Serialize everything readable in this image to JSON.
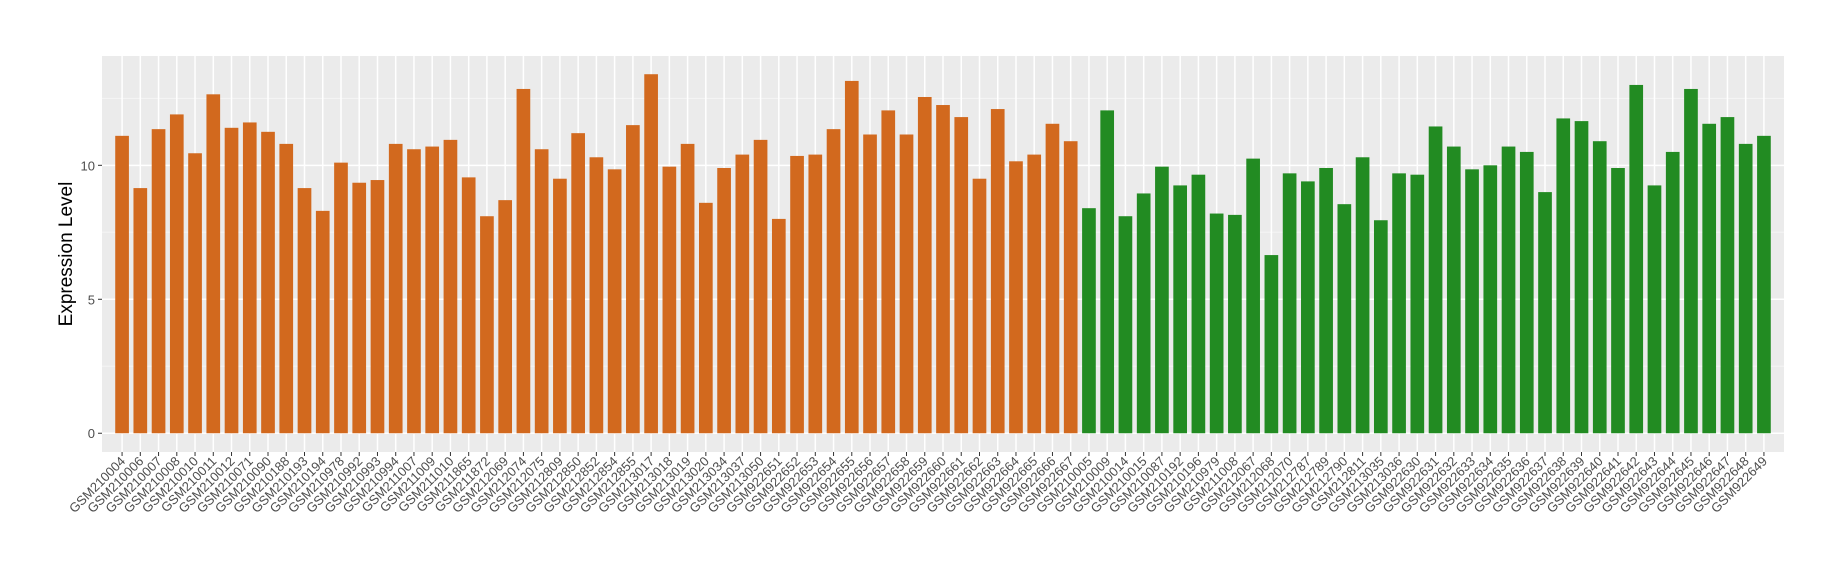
{
  "chart_data": {
    "type": "bar",
    "y_label": "Expression Level",
    "categories": [
      "GSM210004",
      "GSM210006",
      "GSM210007",
      "GSM210008",
      "GSM210010",
      "GSM210011",
      "GSM210012",
      "GSM210071",
      "GSM210090",
      "GSM210188",
      "GSM210193",
      "GSM210194",
      "GSM210978",
      "GSM210992",
      "GSM210993",
      "GSM210994",
      "GSM211007",
      "GSM211009",
      "GSM211010",
      "GSM211865",
      "GSM211872",
      "GSM212069",
      "GSM212074",
      "GSM212075",
      "GSM212809",
      "GSM212850",
      "GSM212852",
      "GSM212854",
      "GSM212855",
      "GSM213017",
      "GSM213018",
      "GSM213019",
      "GSM213020",
      "GSM213034",
      "GSM213037",
      "GSM213050",
      "GSM922651",
      "GSM922652",
      "GSM922653",
      "GSM922654",
      "GSM922655",
      "GSM922656",
      "GSM922657",
      "GSM922658",
      "GSM922659",
      "GSM922660",
      "GSM922661",
      "GSM922662",
      "GSM922663",
      "GSM922664",
      "GSM922665",
      "GSM922666",
      "GSM922667",
      "GSM210005",
      "GSM210009",
      "GSM210014",
      "GSM210015",
      "GSM210087",
      "GSM210192",
      "GSM210196",
      "GSM210979",
      "GSM211008",
      "GSM212067",
      "GSM212068",
      "GSM212070",
      "GSM212787",
      "GSM212789",
      "GSM212790",
      "GSM212811",
      "GSM213035",
      "GSM213036",
      "GSM922630",
      "GSM922631",
      "GSM922632",
      "GSM922633",
      "GSM922634",
      "GSM922635",
      "GSM922636",
      "GSM922637",
      "GSM922638",
      "GSM922639",
      "GSM922640",
      "GSM922641",
      "GSM922642",
      "GSM922643",
      "GSM922644",
      "GSM922645",
      "GSM922646",
      "GSM922647",
      "GSM922648",
      "GSM922649"
    ],
    "values": [
      11.1,
      9.15,
      11.35,
      11.9,
      10.45,
      12.65,
      11.4,
      11.6,
      11.25,
      10.8,
      9.15,
      8.3,
      10.1,
      9.35,
      9.45,
      10.8,
      10.6,
      10.7,
      10.95,
      9.55,
      8.1,
      8.7,
      12.85,
      10.6,
      9.5,
      11.2,
      10.3,
      9.85,
      11.5,
      13.4,
      9.95,
      10.8,
      8.6,
      9.9,
      10.4,
      10.95,
      8.0,
      10.35,
      10.4,
      11.35,
      13.15,
      11.15,
      12.05,
      11.15,
      12.55,
      12.25,
      11.8,
      9.5,
      12.1,
      10.15,
      10.4,
      11.55,
      10.9,
      8.4,
      12.05,
      8.1,
      8.95,
      9.95,
      9.25,
      9.65,
      8.2,
      8.15,
      10.25,
      6.65,
      9.7,
      9.4,
      9.9,
      8.55,
      10.3,
      7.95,
      9.7,
      9.65,
      11.45,
      10.7,
      9.85,
      10.0,
      10.7,
      10.5,
      9.0,
      11.75,
      11.65,
      10.9,
      9.9,
      13.0,
      9.25,
      10.5,
      12.85,
      11.55,
      11.8,
      10.8,
      11.1
    ],
    "colors": [
      "#d2691e",
      "#d2691e",
      "#d2691e",
      "#d2691e",
      "#d2691e",
      "#d2691e",
      "#d2691e",
      "#d2691e",
      "#d2691e",
      "#d2691e",
      "#d2691e",
      "#d2691e",
      "#d2691e",
      "#d2691e",
      "#d2691e",
      "#d2691e",
      "#d2691e",
      "#d2691e",
      "#d2691e",
      "#d2691e",
      "#d2691e",
      "#d2691e",
      "#d2691e",
      "#d2691e",
      "#d2691e",
      "#d2691e",
      "#d2691e",
      "#d2691e",
      "#d2691e",
      "#d2691e",
      "#d2691e",
      "#d2691e",
      "#d2691e",
      "#d2691e",
      "#d2691e",
      "#d2691e",
      "#d2691e",
      "#d2691e",
      "#d2691e",
      "#d2691e",
      "#d2691e",
      "#d2691e",
      "#d2691e",
      "#d2691e",
      "#d2691e",
      "#d2691e",
      "#d2691e",
      "#d2691e",
      "#d2691e",
      "#d2691e",
      "#d2691e",
      "#d2691e",
      "#d2691e",
      "#228b22",
      "#228b22",
      "#228b22",
      "#228b22",
      "#228b22",
      "#228b22",
      "#228b22",
      "#228b22",
      "#228b22",
      "#228b22",
      "#228b22",
      "#228b22",
      "#228b22",
      "#228b22",
      "#228b22",
      "#228b22",
      "#228b22",
      "#228b22",
      "#228b22",
      "#228b22",
      "#228b22",
      "#228b22",
      "#228b22",
      "#228b22",
      "#228b22",
      "#228b22",
      "#228b22",
      "#228b22",
      "#228b22",
      "#228b22",
      "#228b22",
      "#228b22",
      "#228b22",
      "#228b22",
      "#228b22",
      "#228b22",
      "#228b22",
      "#228b22"
    ],
    "ylim": [
      -0.7,
      14.08
    ],
    "yticks": [
      0,
      5,
      10
    ],
    "grid": true
  }
}
